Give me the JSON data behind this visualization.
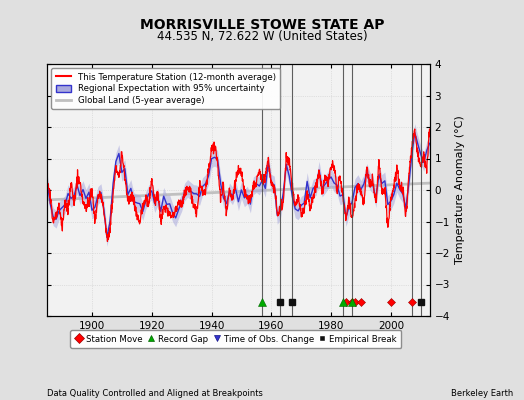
{
  "title": "MORRISVILLE STOWE STATE AP",
  "subtitle": "44.535 N, 72.622 W (United States)",
  "xlabel_note": "Data Quality Controlled and Aligned at Breakpoints",
  "xlabel_right": "Berkeley Earth",
  "ylabel": "Temperature Anomaly (°C)",
  "ylim": [
    -4,
    4
  ],
  "xlim": [
    1885,
    2013
  ],
  "yticks": [
    -4,
    -3,
    -2,
    -1,
    0,
    1,
    2,
    3,
    4
  ],
  "xticks": [
    1900,
    1920,
    1940,
    1960,
    1980,
    2000
  ],
  "bg_color": "#e0e0e0",
  "plot_bg_color": "#f2f2f2",
  "station_moves": [
    1985,
    1987,
    1988,
    1990,
    2000,
    2007
  ],
  "record_gaps": [
    1957,
    1984,
    1987
  ],
  "empirical_breaks": [
    1963,
    1967,
    2010
  ],
  "vertical_lines": [
    1957,
    1963,
    1967,
    1984,
    1987,
    2007,
    2010
  ],
  "seed": 42
}
